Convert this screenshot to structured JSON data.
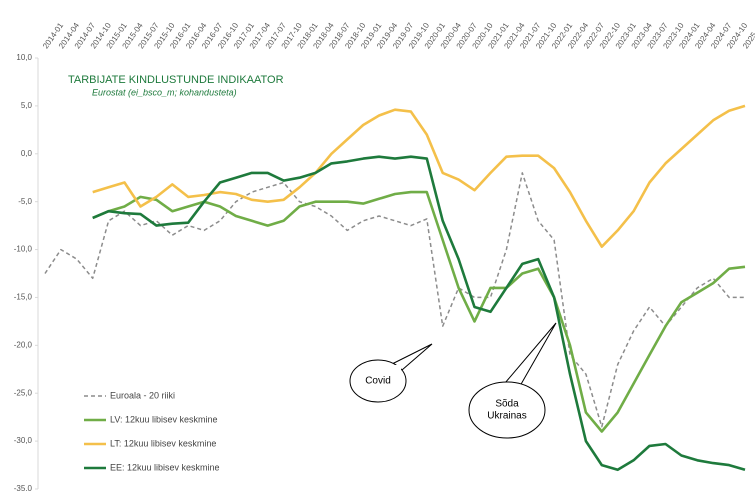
{
  "chart_data": {
    "type": "line",
    "title": "TARBIJATE KINDLUSTUNDE INDIKAATOR",
    "subtitle": "Eurostat (ei_bsco_m; kohandusteta)",
    "categories": [
      "2014-01",
      "2014-04",
      "2014-07",
      "2014-10",
      "2015-01",
      "2015-04",
      "2015-07",
      "2015-10",
      "2016-01",
      "2016-04",
      "2016-07",
      "2016-10",
      "2017-01",
      "2017-04",
      "2017-07",
      "2017-10",
      "2018-01",
      "2018-04",
      "2018-07",
      "2018-10",
      "2019-01",
      "2019-04",
      "2019-07",
      "2019-10",
      "2020-01",
      "2020-04",
      "2020-07",
      "2020-10",
      "2021-01",
      "2021-04",
      "2021-07",
      "2021-10",
      "2022-01",
      "2022-04",
      "2022-07",
      "2022-10",
      "2023-01",
      "2023-04",
      "2023-07",
      "2023-10",
      "2024-01",
      "2024-04",
      "2024-07",
      "2024-10",
      "2025"
    ],
    "series": [
      {
        "name": "Euroala - 20 riiki",
        "color": "#8c8c8c",
        "dashed": true,
        "values": [
          -12.5,
          -10,
          -11,
          -13,
          -7,
          -6,
          -7.5,
          -7,
          -8.5,
          -7.5,
          -8,
          -7,
          -5,
          -4,
          -3.5,
          -3,
          -5,
          -5.5,
          -6.5,
          -8,
          -7,
          -6.5,
          -7,
          -7.5,
          -6.8,
          -18,
          -14,
          -15,
          -15,
          -10,
          -2,
          -7,
          -9,
          -21,
          -23,
          -28.5,
          -22,
          -18.5,
          -16,
          -18,
          -16,
          -14,
          -13,
          -15,
          -15
        ]
      },
      {
        "name": "LV: 12kuu libisev keskmine",
        "color": "#70ad47",
        "values": [
          null,
          null,
          null,
          -6.7,
          -6,
          -5.5,
          -4.5,
          -4.8,
          -6,
          -5.5,
          -5,
          -5.5,
          -6.5,
          -7,
          -7.5,
          -7,
          -5.5,
          -5,
          -5,
          -5,
          -5.2,
          -4.7,
          -4.2,
          -4,
          -4,
          -9,
          -14,
          -17.5,
          -14,
          -14,
          -12.5,
          -12,
          -15,
          -20,
          -27,
          -29,
          -27,
          -24,
          -21,
          -18,
          -15.5,
          -14.5,
          -13.5,
          -12,
          -11.8
        ]
      },
      {
        "name": "LT: 12kuu libisev keskmine",
        "color": "#f4c04a",
        "values": [
          null,
          null,
          null,
          -4,
          -3.5,
          -3,
          -5.5,
          -4.5,
          -3.2,
          -4.5,
          -4.3,
          -4,
          -4.2,
          -4.8,
          -5,
          -4.8,
          -3.5,
          -2,
          0,
          1.5,
          3,
          4,
          4.6,
          4.4,
          2,
          -2,
          -2.7,
          -3.8,
          -2,
          -0.3,
          -0.2,
          -0.2,
          -1.5,
          -4,
          -7,
          -9.7,
          -8,
          -6,
          -3,
          -1,
          0.5,
          2,
          3.5,
          4.5,
          5
        ]
      },
      {
        "name": "EE: 12kuu libisev keskmine",
        "color": "#1e7a3c",
        "values": [
          null,
          null,
          null,
          -6.7,
          -6,
          -6.2,
          -6.3,
          -7.5,
          -7.3,
          -7.2,
          -5,
          -3,
          -2.5,
          -2,
          -2,
          -2.8,
          -2.5,
          -2,
          -1,
          -0.8,
          -0.5,
          -0.3,
          -0.5,
          -0.3,
          -0.5,
          -7,
          -11,
          -16,
          -16.5,
          -14,
          -11.5,
          -11,
          -15,
          -23,
          -30,
          -32.5,
          -33,
          -32,
          -30.5,
          -30.3,
          -31.5,
          -32,
          -32.3,
          -32.5,
          -33
        ]
      }
    ],
    "ylim": [
      -35,
      10
    ],
    "yticks": [
      {
        "value": 10,
        "label": "10,0"
      },
      {
        "value": 5,
        "label": "5,0"
      },
      {
        "value": 0,
        "label": "0,0"
      },
      {
        "value": -5,
        "label": "-5,0"
      },
      {
        "value": -10,
        "label": "-10,0"
      },
      {
        "value": -15,
        "label": "-15,0"
      },
      {
        "value": -20,
        "label": "-20,0"
      },
      {
        "value": -25,
        "label": "-25,0"
      },
      {
        "value": -30,
        "label": "-30,0"
      },
      {
        "value": -35,
        "label": "-35,0"
      }
    ],
    "annotations": [
      {
        "lines": [
          "Covid"
        ]
      },
      {
        "lines": [
          "Sõda",
          "Ukrainas"
        ]
      }
    ]
  }
}
